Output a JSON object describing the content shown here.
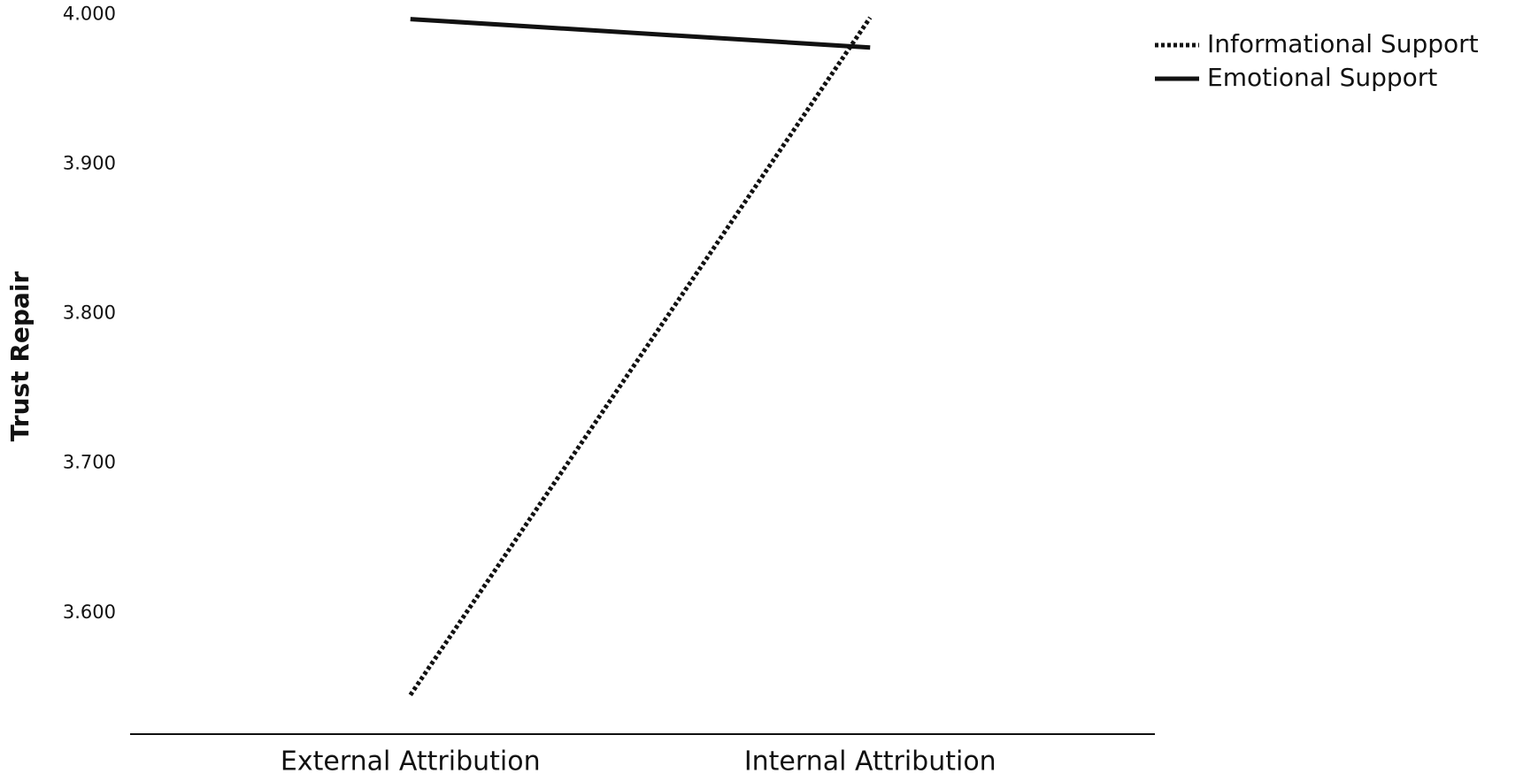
{
  "chart_data": {
    "type": "line",
    "y_label": "Trust Repair",
    "categories": [
      "External Attribution",
      "Internal Attribution"
    ],
    "series": [
      {
        "name": "Informational Support",
        "color": "#111111",
        "dash": true,
        "values": [
          3.545,
          3.998
        ]
      },
      {
        "name": "Emotional Support",
        "color": "#111111",
        "dash": false,
        "values": [
          3.997,
          3.978
        ]
      }
    ],
    "ylim": [
      3.52,
      4.0
    ],
    "yticks": [
      {
        "value": 3.6,
        "label": "3.600"
      },
      {
        "value": 3.7,
        "label": "3.700"
      },
      {
        "value": 3.8,
        "label": "3.800"
      },
      {
        "value": 3.9,
        "label": "3.900"
      },
      {
        "value": 4.0,
        "label": "4.000"
      }
    ],
    "grid": false,
    "legend": "top-right"
  }
}
